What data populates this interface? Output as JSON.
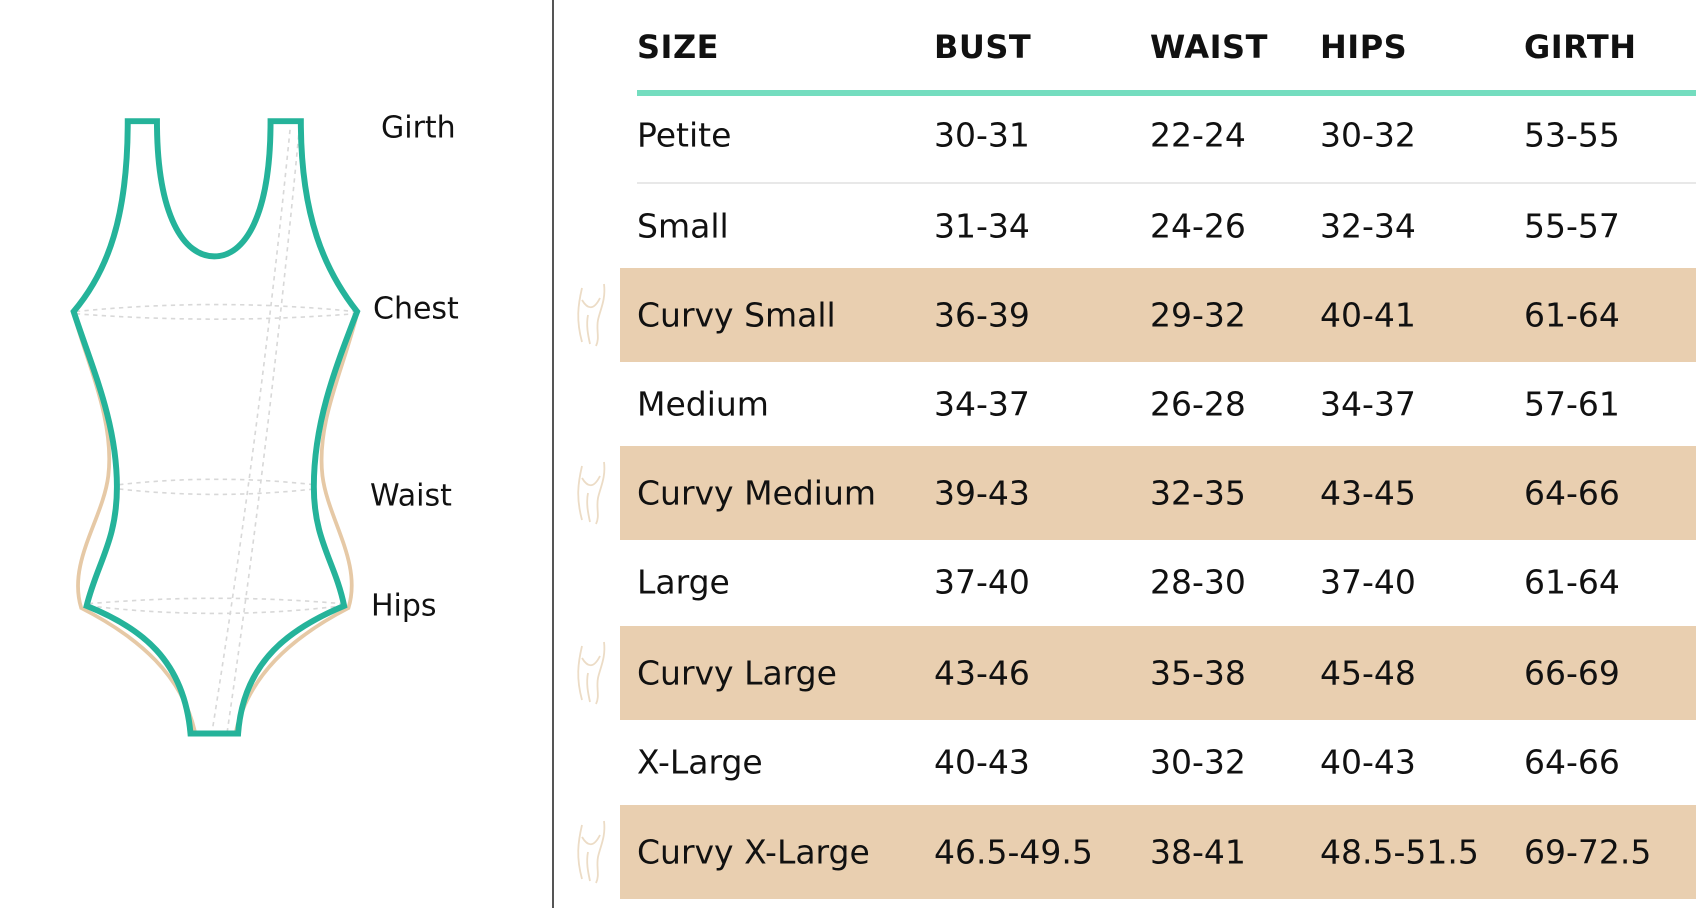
{
  "figure": {
    "labels": [
      "Girth",
      "Chest",
      "Waist",
      "Hips"
    ],
    "colors": {
      "standard_outline": "#25b39a",
      "curvy_outline": "#e6c9a6",
      "guide_lines": "#d8d8d8"
    }
  },
  "table": {
    "headers": [
      "SIZE",
      "BUST",
      "WAIST",
      "HIPS",
      "GIRTH"
    ],
    "header_rule_color": "#74ddbf",
    "curvy_highlight_color": "#e9cfb0",
    "rows": [
      {
        "size": "Petite",
        "bust": "30-31",
        "waist": "22-24",
        "hips": "30-32",
        "girth": "53-55",
        "curvy": false
      },
      {
        "size": "Small",
        "bust": "31-34",
        "waist": "24-26",
        "hips": "32-34",
        "girth": "55-57",
        "curvy": false
      },
      {
        "size": "Curvy Small",
        "bust": "36-39",
        "waist": "29-32",
        "hips": "40-41",
        "girth": "61-64",
        "curvy": true
      },
      {
        "size": "Medium",
        "bust": "34-37",
        "waist": "26-28",
        "hips": "34-37",
        "girth": "57-61",
        "curvy": false
      },
      {
        "size": "Curvy Medium",
        "bust": "39-43",
        "waist": "32-35",
        "hips": "43-45",
        "girth": "64-66",
        "curvy": true
      },
      {
        "size": "Large",
        "bust": "37-40",
        "waist": "28-30",
        "hips": "37-40",
        "girth": "61-64",
        "curvy": false
      },
      {
        "size": "Curvy Large",
        "bust": "43-46",
        "waist": "35-38",
        "hips": "45-48",
        "girth": "66-69",
        "curvy": true
      },
      {
        "size": "X-Large",
        "bust": "40-43",
        "waist": "30-32",
        "hips": "40-43",
        "girth": "64-66",
        "curvy": false
      },
      {
        "size": "Curvy X-Large",
        "bust": "46.5-49.5",
        "waist": "38-41",
        "hips": "48.5-51.5",
        "girth": "69-72.5",
        "curvy": true
      }
    ]
  }
}
